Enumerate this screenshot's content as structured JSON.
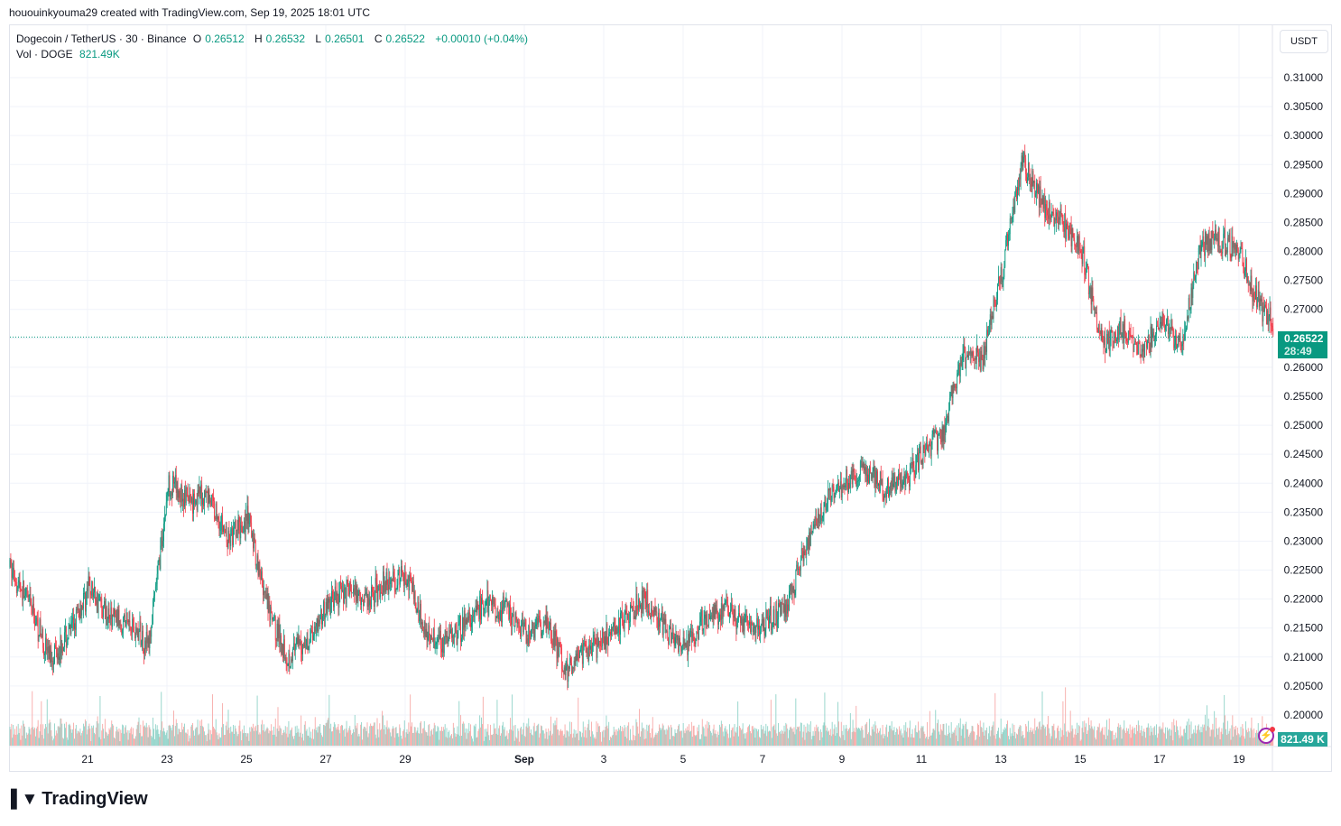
{
  "credit": "hououinkyouma29 created with TradingView.com, Sep 19, 2025 18:01 UTC",
  "legend": {
    "symbol": "Dogecoin / TetherUS · 30 · Binance",
    "o_label": "O",
    "o": "0.26512",
    "h_label": "H",
    "h": "0.26532",
    "l_label": "L",
    "l": "0.26501",
    "c_label": "C",
    "c": "0.26522",
    "change": "+0.00010 (+0.04%)",
    "vol_label": "Vol · DOGE",
    "vol": "821.49K"
  },
  "currency_button": "USDT",
  "last_price": "0.26522",
  "countdown": "28:49",
  "volume_label": "821.49 K",
  "brand": "TradingView",
  "icons": {
    "alert": "lightning-icon",
    "logo": "tradingview-logo"
  },
  "colors": {
    "up": "#089981",
    "down": "#f23645",
    "up_vol": "#8fd3c8",
    "down_vol": "#f7a9a7",
    "grid": "#f0f3fa",
    "price_line": "#089981"
  },
  "chart_data": {
    "type": "candlestick",
    "timeframe": "30m",
    "start": "2025-08-19 00:00",
    "sample_interval": "12h",
    "approx_closes": [
      0.2255,
      0.219,
      0.21,
      0.214,
      0.222,
      0.217,
      0.216,
      0.212,
      0.24,
      0.237,
      0.238,
      0.23,
      0.234,
      0.218,
      0.21,
      0.213,
      0.219,
      0.222,
      0.22,
      0.223,
      0.224,
      0.214,
      0.213,
      0.216,
      0.219,
      0.218,
      0.214,
      0.216,
      0.208,
      0.211,
      0.213,
      0.217,
      0.22,
      0.215,
      0.211,
      0.217,
      0.218,
      0.215,
      0.216,
      0.218,
      0.228,
      0.236,
      0.24,
      0.243,
      0.239,
      0.24,
      0.245,
      0.249,
      0.262,
      0.262,
      0.277,
      0.296,
      0.288,
      0.285,
      0.28,
      0.264,
      0.267,
      0.262,
      0.268,
      0.264,
      0.281,
      0.282,
      0.279,
      0.27
    ],
    "last_close": 0.26522,
    "y_ticks": [
      "0.31000",
      "0.30500",
      "0.30000",
      "0.29500",
      "0.29000",
      "0.28500",
      "0.28000",
      "0.27500",
      "0.27000",
      "0.26500",
      "0.26000",
      "0.25500",
      "0.25000",
      "0.24500",
      "0.24000",
      "0.23500",
      "0.23000",
      "0.22500",
      "0.22000",
      "0.21500",
      "0.21000",
      "0.20500",
      "0.20000"
    ],
    "ylim": [
      0.2,
      0.31
    ],
    "x_ticks": [
      {
        "label": "21",
        "date": "2025-08-21"
      },
      {
        "label": "23",
        "date": "2025-08-23"
      },
      {
        "label": "25",
        "date": "2025-08-25"
      },
      {
        "label": "27",
        "date": "2025-08-27"
      },
      {
        "label": "29",
        "date": "2025-08-29"
      },
      {
        "label": "Sep",
        "date": "2025-09-01"
      },
      {
        "label": "3",
        "date": "2025-09-03"
      },
      {
        "label": "5",
        "date": "2025-09-05"
      },
      {
        "label": "7",
        "date": "2025-09-07"
      },
      {
        "label": "9",
        "date": "2025-09-09"
      },
      {
        "label": "11",
        "date": "2025-09-11"
      },
      {
        "label": "13",
        "date": "2025-09-13"
      },
      {
        "label": "15",
        "date": "2025-09-15"
      },
      {
        "label": "17",
        "date": "2025-09-17"
      },
      {
        "label": "19",
        "date": "2025-09-19"
      }
    ],
    "grid": true
  }
}
